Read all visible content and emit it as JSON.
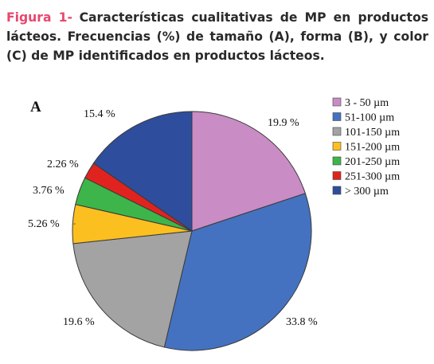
{
  "caption": {
    "label": "Figura 1-",
    "text": "Características cualitativas de MP en productos lácteos. Frecuencias (%) de tamaño (A), forma (B), y color (C) de MP identificados en productos lácteos."
  },
  "chart_data": {
    "type": "pie",
    "panel_label": "A",
    "title": "",
    "slices": [
      {
        "name": "3 - 50 µm",
        "value": 19.9,
        "label": "19.9 %",
        "color": "#c98cc5"
      },
      {
        "name": "51-100 µm",
        "value": 33.8,
        "label": "33.8 %",
        "color": "#4472c0"
      },
      {
        "name": "101-150 µm",
        "value": 19.6,
        "label": "19.6 %",
        "color": "#a3a3a3"
      },
      {
        "name": "151-200 µm",
        "value": 5.26,
        "label": "5.26 %",
        "color": "#fcbf20"
      },
      {
        "name": "201-250 µm",
        "value": 3.76,
        "label": "3.76 %",
        "color": "#3db54a"
      },
      {
        "name": "251-300 µm",
        "value": 2.26,
        "label": "2.26 %",
        "color": "#e0231f"
      },
      {
        "name": "> 300 µm",
        "value": 15.4,
        "label": "15.4 %",
        "color": "#2e4d9c"
      }
    ],
    "start_angle": "12 o'clock",
    "direction": "clockwise",
    "legend_position": "right"
  }
}
